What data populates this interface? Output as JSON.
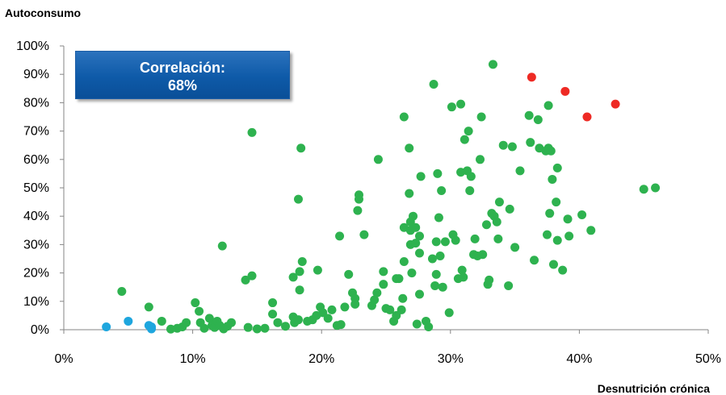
{
  "chart_data": {
    "type": "scatter",
    "ylabel": "Autoconsumo",
    "xlabel": "Desnutrición crónica",
    "annotation": {
      "line1": "Correlación:",
      "line2": "68%"
    },
    "xlim": [
      0,
      50
    ],
    "ylim": [
      0,
      100
    ],
    "x_ticks": [
      "0%",
      "10%",
      "20%",
      "30%",
      "40%",
      "50%"
    ],
    "y_ticks": [
      "0%",
      "10%",
      "20%",
      "30%",
      "40%",
      "50%",
      "60%",
      "70%",
      "80%",
      "90%",
      "100%"
    ],
    "colors": {
      "green": "#2eb24f",
      "red": "#ee2a24",
      "blue": "#1ea6de",
      "box": "#0e5aa8"
    },
    "series": [
      {
        "color": "blue",
        "points": [
          [
            3.3,
            1
          ],
          [
            5,
            3
          ],
          [
            6.6,
            1.5
          ],
          [
            6.8,
            1
          ],
          [
            6.8,
            0.3
          ]
        ]
      },
      {
        "color": "red",
        "points": [
          [
            36.3,
            89
          ],
          [
            38.9,
            84
          ],
          [
            40.6,
            75
          ],
          [
            42.8,
            79.5
          ]
        ]
      },
      {
        "color": "green",
        "points": [
          [
            4.5,
            13.5
          ],
          [
            6.6,
            8
          ],
          [
            7.6,
            3
          ],
          [
            8.3,
            0.2
          ],
          [
            8.8,
            0.5
          ],
          [
            9.2,
            1
          ],
          [
            9.5,
            2.5
          ],
          [
            10.2,
            9.5
          ],
          [
            10.5,
            6.5
          ],
          [
            10.6,
            2.5
          ],
          [
            10.9,
            0.5
          ],
          [
            11.3,
            4
          ],
          [
            11.5,
            1.5
          ],
          [
            11.7,
            0.8
          ],
          [
            11.9,
            3
          ],
          [
            12.1,
            1.5
          ],
          [
            12.4,
            0.3
          ],
          [
            12.7,
            1.2
          ],
          [
            13,
            2.5
          ],
          [
            12.3,
            29.5
          ],
          [
            14.1,
            17.5
          ],
          [
            14.3,
            0.8
          ],
          [
            14.6,
            19
          ],
          [
            14.6,
            69.5
          ],
          [
            15,
            0.3
          ],
          [
            15.6,
            0.5
          ],
          [
            16.2,
            9.5
          ],
          [
            16.2,
            5.5
          ],
          [
            16.6,
            2.5
          ],
          [
            17.2,
            1.2
          ],
          [
            17.8,
            4.5
          ],
          [
            17.8,
            18.5
          ],
          [
            17.9,
            2.5
          ],
          [
            18.2,
            3.5
          ],
          [
            18.3,
            14
          ],
          [
            18.3,
            20.5
          ],
          [
            18.4,
            64
          ],
          [
            18.2,
            46
          ],
          [
            18.5,
            24
          ],
          [
            18.9,
            3
          ],
          [
            19.3,
            3.5
          ],
          [
            19.6,
            5
          ],
          [
            19.9,
            8
          ],
          [
            19.7,
            21
          ],
          [
            20.1,
            6
          ],
          [
            20.5,
            4
          ],
          [
            20.8,
            7
          ],
          [
            21.2,
            1.5
          ],
          [
            21.5,
            1.8
          ],
          [
            21.4,
            33
          ],
          [
            21.8,
            8
          ],
          [
            22.1,
            19.5
          ],
          [
            22.4,
            13
          ],
          [
            22.6,
            11
          ],
          [
            22.6,
            9
          ],
          [
            22.8,
            42
          ],
          [
            22.9,
            47.5
          ],
          [
            22.9,
            46
          ],
          [
            23.3,
            33.5
          ],
          [
            23.9,
            8.5
          ],
          [
            24.1,
            10.5
          ],
          [
            24.3,
            13
          ],
          [
            24.4,
            60
          ],
          [
            24.8,
            16
          ],
          [
            24.8,
            20.5
          ],
          [
            25,
            7.5
          ],
          [
            25.3,
            7
          ],
          [
            25.6,
            3
          ],
          [
            25.8,
            18
          ],
          [
            25.8,
            5
          ],
          [
            26,
            18
          ],
          [
            26.2,
            7
          ],
          [
            26.3,
            11
          ],
          [
            26.4,
            36
          ],
          [
            26.4,
            24
          ],
          [
            26.4,
            75
          ],
          [
            26.8,
            64
          ],
          [
            26.8,
            48
          ],
          [
            26.9,
            38
          ],
          [
            26.9,
            35
          ],
          [
            26.9,
            30
          ],
          [
            27,
            20
          ],
          [
            27.1,
            40
          ],
          [
            27.3,
            36
          ],
          [
            27.3,
            30.5
          ],
          [
            27.4,
            2
          ],
          [
            27.6,
            33
          ],
          [
            27.6,
            27
          ],
          [
            27.6,
            12.5
          ],
          [
            27.7,
            54
          ],
          [
            28.1,
            3
          ],
          [
            28.3,
            1
          ],
          [
            28.6,
            25
          ],
          [
            28.7,
            86.5
          ],
          [
            28.8,
            15.5
          ],
          [
            28.9,
            19.5
          ],
          [
            28.9,
            31
          ],
          [
            29,
            55
          ],
          [
            29.1,
            39.5
          ],
          [
            29.2,
            26
          ],
          [
            29.3,
            49
          ],
          [
            29.4,
            15
          ],
          [
            29.6,
            31
          ],
          [
            29.9,
            6
          ],
          [
            30.1,
            78.5
          ],
          [
            30.2,
            33.5
          ],
          [
            30.4,
            31.5
          ],
          [
            30.6,
            18
          ],
          [
            30.8,
            79.5
          ],
          [
            30.8,
            55.5
          ],
          [
            30.9,
            21
          ],
          [
            31,
            18.5
          ],
          [
            31.1,
            67
          ],
          [
            31.3,
            56
          ],
          [
            31.4,
            70
          ],
          [
            31.5,
            49
          ],
          [
            31.6,
            54
          ],
          [
            31.8,
            26.5
          ],
          [
            31.9,
            32
          ],
          [
            32.1,
            26
          ],
          [
            32.3,
            60
          ],
          [
            32.4,
            75
          ],
          [
            32.5,
            26.5
          ],
          [
            32.8,
            37
          ],
          [
            32.9,
            16
          ],
          [
            33,
            17.5
          ],
          [
            33.2,
            41
          ],
          [
            33.3,
            93.5
          ],
          [
            33.4,
            40
          ],
          [
            33.6,
            38
          ],
          [
            33.7,
            32
          ],
          [
            33.8,
            45
          ],
          [
            34.1,
            65
          ],
          [
            34.5,
            15.5
          ],
          [
            34.6,
            42.5
          ],
          [
            34.8,
            64.5
          ],
          [
            35,
            29
          ],
          [
            35.4,
            56
          ],
          [
            36.1,
            75.5
          ],
          [
            36.2,
            66
          ],
          [
            36.5,
            24.5
          ],
          [
            36.8,
            74
          ],
          [
            36.9,
            64
          ],
          [
            37.4,
            63
          ],
          [
            37.5,
            33.5
          ],
          [
            37.6,
            64
          ],
          [
            37.6,
            79
          ],
          [
            37.7,
            41
          ],
          [
            37.8,
            63
          ],
          [
            37.9,
            53
          ],
          [
            38,
            23
          ],
          [
            38.2,
            45
          ],
          [
            38.3,
            31.5
          ],
          [
            38.3,
            57
          ],
          [
            38.7,
            21
          ],
          [
            39.1,
            39
          ],
          [
            39.2,
            33
          ],
          [
            40.2,
            40.5
          ],
          [
            40.9,
            35
          ],
          [
            45,
            49.5
          ],
          [
            45.9,
            50
          ]
        ]
      }
    ]
  }
}
